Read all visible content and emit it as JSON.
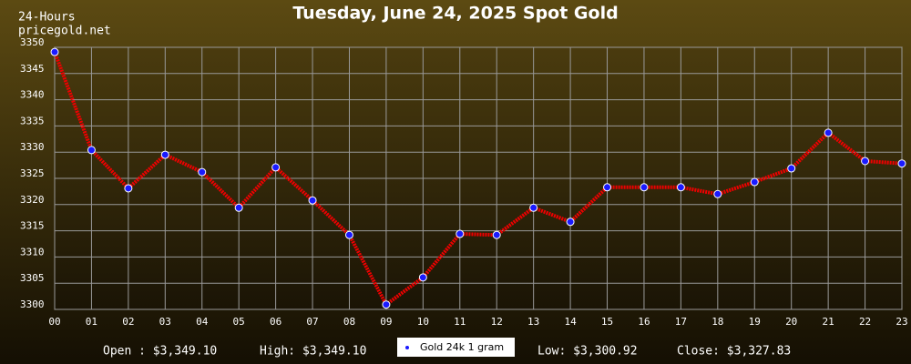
{
  "chart_data": {
    "type": "line",
    "title": "Tuesday, June 24, 2025 Spot Gold",
    "annotations": [
      "24-Hours",
      "pricegold.net"
    ],
    "categories": [
      "00",
      "01",
      "02",
      "03",
      "04",
      "05",
      "06",
      "07",
      "08",
      "09",
      "10",
      "11",
      "12",
      "13",
      "14",
      "15",
      "16",
      "17",
      "18",
      "19",
      "20",
      "21",
      "22",
      "23"
    ],
    "series": [
      {
        "name": "Gold 24k 1 gram",
        "color": "#ee0000",
        "marker_color": "#1a1aff",
        "values": [
          3349.1,
          3330.4,
          3323.1,
          3329.5,
          3326.2,
          3319.4,
          3327.1,
          3320.8,
          3314.2,
          3300.92,
          3306.1,
          3314.4,
          3314.2,
          3319.4,
          3316.7,
          3323.3,
          3323.3,
          3323.3,
          3322.0,
          3324.3,
          3326.9,
          3333.7,
          3328.3,
          3327.83
        ]
      }
    ],
    "ylim": [
      3300,
      3350
    ],
    "yticks": [
      3300,
      3305,
      3310,
      3315,
      3320,
      3325,
      3330,
      3335,
      3340,
      3345,
      3350
    ],
    "grid": true,
    "footer": [
      "Open : $3,349.10",
      "High: $3,349.10",
      "Low: $3,300.92",
      "Close: $3,327.83"
    ]
  }
}
